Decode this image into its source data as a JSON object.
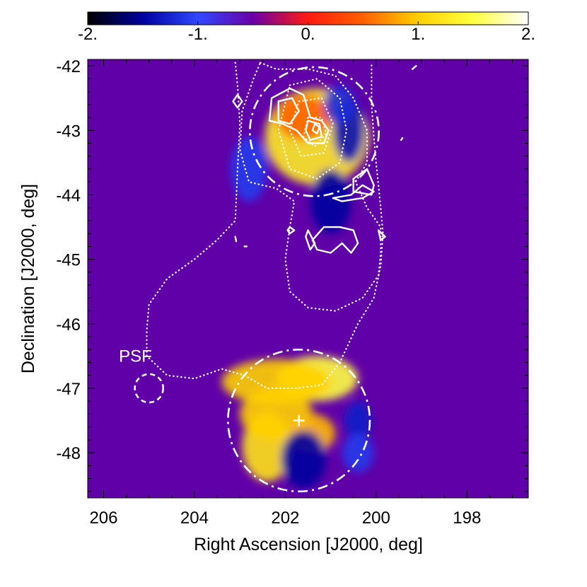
{
  "chart_data": {
    "type": "heatmap",
    "title": "",
    "xlabel": "Right Ascension [J2000, deg]",
    "ylabel": "Declination [J2000, deg]",
    "xlim": [
      206.35,
      196.65
    ],
    "ylim": [
      -48.7,
      -41.9
    ],
    "x_reversed": true,
    "xticks": [
      206,
      204,
      202,
      200,
      198
    ],
    "xtick_labels": [
      "206",
      "204",
      "202",
      "200",
      "198"
    ],
    "yticks": [
      -42,
      -43,
      -44,
      -45,
      -46,
      -47,
      -48
    ],
    "ytick_labels": [
      "-42",
      "-43",
      "-44",
      "-45",
      "-46",
      "-47",
      "-48"
    ],
    "colorbar": {
      "range": [
        -2,
        2
      ],
      "ticks": [
        -2,
        -1,
        0,
        1,
        2
      ],
      "tick_labels": [
        "-2.",
        "-1.",
        "0.",
        "1.",
        "2."
      ],
      "colormap": [
        "#000000",
        "#0000a0",
        "#3048ff",
        "#6a00a8",
        "#ff1a10",
        "#ff6000",
        "#ffd000",
        "#ffff40",
        "#ffffff"
      ]
    },
    "background_value": 0,
    "background_color": "#6000a8",
    "significance_blobs": [
      {
        "ra": 201.3,
        "dec": -43.1,
        "sx": 1.15,
        "sy": 0.75,
        "value": 1.3
      },
      {
        "ra": 201.6,
        "dec": -42.8,
        "sx": 0.6,
        "sy": 0.35,
        "value": 0.5
      },
      {
        "ra": 200.6,
        "dec": -43.0,
        "sx": 0.35,
        "sy": 0.5,
        "value": -1.4
      },
      {
        "ra": 200.8,
        "dec": -42.6,
        "sx": 0.35,
        "sy": 0.3,
        "value": -1.2
      },
      {
        "ra": 201.0,
        "dec": -44.1,
        "sx": 0.45,
        "sy": 0.5,
        "value": -1.5
      },
      {
        "ra": 202.8,
        "dec": -43.6,
        "sx": 0.4,
        "sy": 0.5,
        "value": -1.1
      },
      {
        "ra": 201.3,
        "dec": -46.85,
        "sx": 0.9,
        "sy": 0.35,
        "value": 1.5
      },
      {
        "ra": 202.2,
        "dec": -46.9,
        "sx": 1.2,
        "sy": 0.35,
        "value": 1.0
      },
      {
        "ra": 202.4,
        "dec": -47.9,
        "sx": 0.55,
        "sy": 0.55,
        "value": 1.2
      },
      {
        "ra": 202.2,
        "dec": -47.4,
        "sx": 0.8,
        "sy": 0.4,
        "value": 1.0
      },
      {
        "ra": 201.4,
        "dec": -47.7,
        "sx": 0.5,
        "sy": 0.3,
        "value": 0.9
      },
      {
        "ra": 201.6,
        "dec": -48.1,
        "sx": 0.5,
        "sy": 0.45,
        "value": -1.5
      },
      {
        "ra": 200.4,
        "dec": -47.5,
        "sx": 0.3,
        "sy": 0.3,
        "value": -1.3
      },
      {
        "ra": 200.4,
        "dec": -48.0,
        "sx": 0.35,
        "sy": 0.3,
        "value": -1.1
      }
    ],
    "regions": [
      {
        "shape": "circle",
        "style": "dash-dot",
        "ra": 201.36,
        "dec": -43.02,
        "radius_deg": 1.0
      },
      {
        "shape": "circle",
        "style": "dash-dot",
        "ra": 201.7,
        "dec": -47.5,
        "radius_deg": 1.1
      },
      {
        "shape": "circle",
        "style": "dashed",
        "ra": 205.0,
        "dec": -47.0,
        "radius_deg": 0.22,
        "label": "PSF"
      }
    ],
    "markers": [
      {
        "shape": "plus",
        "ra": 201.7,
        "dec": -47.5
      }
    ],
    "annotations": [
      {
        "text": "PSF",
        "ra": 205.3,
        "dec": -46.5
      }
    ],
    "dotted_contours": [
      {
        "points": [
          [
            203.1,
            -41.95
          ],
          [
            203.05,
            -42.3
          ],
          [
            203.0,
            -42.9
          ],
          [
            203.05,
            -43.6
          ],
          [
            203.1,
            -44.4
          ],
          [
            203.5,
            -44.7
          ],
          [
            204.0,
            -45.0
          ],
          [
            204.6,
            -45.3
          ],
          [
            205.0,
            -45.7
          ],
          [
            205.05,
            -46.1
          ],
          [
            205.05,
            -46.5
          ],
          [
            204.6,
            -46.8
          ],
          [
            204.0,
            -46.85
          ],
          [
            203.4,
            -46.7
          ],
          [
            202.9,
            -46.8
          ],
          [
            202.4,
            -47.0
          ],
          [
            201.8,
            -47.0
          ],
          [
            201.2,
            -46.95
          ],
          [
            200.8,
            -46.6
          ],
          [
            200.6,
            -46.3
          ],
          [
            200.4,
            -46.0
          ],
          [
            200.05,
            -45.6
          ],
          [
            199.9,
            -45.1
          ],
          [
            199.85,
            -44.6
          ],
          [
            199.9,
            -44.2
          ],
          [
            199.95,
            -43.85
          ],
          [
            200.0,
            -43.5
          ],
          [
            200.05,
            -43.1
          ],
          [
            200.1,
            -42.6
          ],
          [
            200.1,
            -42.1
          ],
          [
            200.1,
            -41.95
          ]
        ],
        "closed": false
      },
      {
        "points": [
          [
            202.55,
            -41.95
          ],
          [
            202.2,
            -42.05
          ],
          [
            201.5,
            -42.05
          ],
          [
            200.9,
            -42.15
          ],
          [
            200.5,
            -42.5
          ],
          [
            200.2,
            -43.0
          ],
          [
            200.2,
            -43.5
          ],
          [
            200.45,
            -43.8
          ],
          [
            200.2,
            -44.2
          ],
          [
            199.9,
            -44.5
          ],
          [
            199.9,
            -44.9
          ],
          [
            199.95,
            -45.25
          ],
          [
            200.3,
            -45.6
          ],
          [
            200.9,
            -45.8
          ],
          [
            201.5,
            -45.75
          ],
          [
            201.9,
            -45.5
          ],
          [
            202.0,
            -45.0
          ],
          [
            201.9,
            -44.5
          ],
          [
            201.8,
            -44.1
          ],
          [
            202.2,
            -43.9
          ],
          [
            202.8,
            -43.8
          ],
          [
            203.0,
            -43.3
          ],
          [
            202.95,
            -42.7
          ],
          [
            202.7,
            -42.2
          ],
          [
            202.55,
            -41.95
          ]
        ],
        "closed": true
      },
      {
        "points": [
          [
            201.9,
            -42.3
          ],
          [
            201.3,
            -42.2
          ],
          [
            200.8,
            -42.5
          ],
          [
            200.65,
            -43.0
          ],
          [
            200.8,
            -43.5
          ],
          [
            201.3,
            -43.75
          ],
          [
            201.9,
            -43.6
          ],
          [
            202.15,
            -43.0
          ],
          [
            201.9,
            -42.3
          ]
        ],
        "closed": true
      },
      {
        "points": [
          [
            201.7,
            -42.55
          ],
          [
            201.2,
            -42.5
          ],
          [
            200.95,
            -42.9
          ],
          [
            201.15,
            -43.35
          ],
          [
            201.65,
            -43.4
          ],
          [
            201.9,
            -43.0
          ],
          [
            201.7,
            -42.55
          ]
        ],
        "closed": true
      },
      {
        "points": [
          [
            201.5,
            -42.8
          ],
          [
            201.2,
            -42.8
          ],
          [
            201.1,
            -43.05
          ],
          [
            201.35,
            -43.25
          ],
          [
            201.6,
            -43.1
          ],
          [
            201.5,
            -42.8
          ]
        ],
        "closed": true
      }
    ],
    "solid_contours": [
      {
        "points": [
          [
            202.3,
            -42.5
          ],
          [
            201.9,
            -42.35
          ],
          [
            201.6,
            -42.45
          ],
          [
            201.45,
            -42.8
          ],
          [
            201.2,
            -42.85
          ],
          [
            201.05,
            -43.0
          ],
          [
            201.15,
            -43.2
          ],
          [
            201.5,
            -43.2
          ],
          [
            201.75,
            -43.0
          ],
          [
            202.05,
            -42.9
          ],
          [
            202.35,
            -42.85
          ],
          [
            202.3,
            -42.5
          ]
        ]
      },
      {
        "points": [
          [
            202.15,
            -42.55
          ],
          [
            201.85,
            -42.5
          ],
          [
            201.7,
            -42.7
          ],
          [
            201.9,
            -42.9
          ],
          [
            202.15,
            -42.85
          ],
          [
            202.15,
            -42.55
          ]
        ]
      },
      {
        "points": [
          [
            201.5,
            -42.85
          ],
          [
            201.25,
            -42.9
          ],
          [
            201.2,
            -43.1
          ],
          [
            201.45,
            -43.15
          ],
          [
            201.55,
            -43.0
          ],
          [
            201.5,
            -42.85
          ]
        ]
      },
      {
        "points": [
          [
            201.35,
            -42.9
          ],
          [
            201.25,
            -42.95
          ],
          [
            201.3,
            -43.05
          ],
          [
            201.4,
            -43.0
          ],
          [
            201.35,
            -42.9
          ]
        ]
      },
      {
        "points": [
          [
            200.5,
            -43.75
          ],
          [
            200.2,
            -43.6
          ],
          [
            200.05,
            -43.85
          ],
          [
            200.1,
            -44.0
          ],
          [
            200.5,
            -43.95
          ],
          [
            200.5,
            -43.75
          ]
        ]
      },
      {
        "points": [
          [
            200.95,
            -44.05
          ],
          [
            200.55,
            -44.0
          ],
          [
            200.3,
            -43.85
          ],
          [
            200.05,
            -43.95
          ],
          [
            200.3,
            -44.05
          ],
          [
            200.75,
            -44.1
          ],
          [
            200.95,
            -44.05
          ]
        ]
      },
      {
        "points": [
          [
            201.4,
            -44.7
          ],
          [
            201.15,
            -44.5
          ],
          [
            200.8,
            -44.5
          ],
          [
            200.5,
            -44.55
          ],
          [
            200.4,
            -44.75
          ],
          [
            200.55,
            -44.9
          ],
          [
            200.75,
            -44.75
          ],
          [
            201.0,
            -44.9
          ],
          [
            201.3,
            -44.85
          ],
          [
            201.4,
            -44.7
          ]
        ]
      },
      {
        "points": [
          [
            201.5,
            -44.55
          ],
          [
            201.35,
            -44.75
          ],
          [
            201.45,
            -44.85
          ],
          [
            201.55,
            -44.65
          ],
          [
            201.5,
            -44.55
          ]
        ]
      },
      {
        "points": [
          [
            199.95,
            -44.55
          ],
          [
            199.8,
            -44.65
          ],
          [
            199.9,
            -44.7
          ],
          [
            199.95,
            -44.55
          ]
        ]
      },
      {
        "points": [
          [
            203.05,
            -42.45
          ],
          [
            202.95,
            -42.55
          ],
          [
            203.05,
            -42.65
          ],
          [
            203.15,
            -42.55
          ],
          [
            203.05,
            -42.45
          ]
        ]
      },
      {
        "points": [
          [
            201.9,
            -44.5
          ],
          [
            201.8,
            -44.55
          ],
          [
            201.9,
            -44.6
          ],
          [
            201.95,
            -44.55
          ],
          [
            201.9,
            -44.5
          ]
        ]
      },
      {
        "points": [
          [
            203.1,
            -44.65
          ],
          [
            203.08,
            -44.72
          ]
        ]
      },
      {
        "points": [
          [
            202.9,
            -44.8
          ],
          [
            202.85,
            -44.8
          ]
        ]
      },
      {
        "points": [
          [
            199.2,
            -42.05
          ],
          [
            199.12,
            -42.0
          ]
        ]
      },
      {
        "points": [
          [
            199.45,
            -43.15
          ],
          [
            199.42,
            -43.12
          ]
        ]
      }
    ]
  }
}
